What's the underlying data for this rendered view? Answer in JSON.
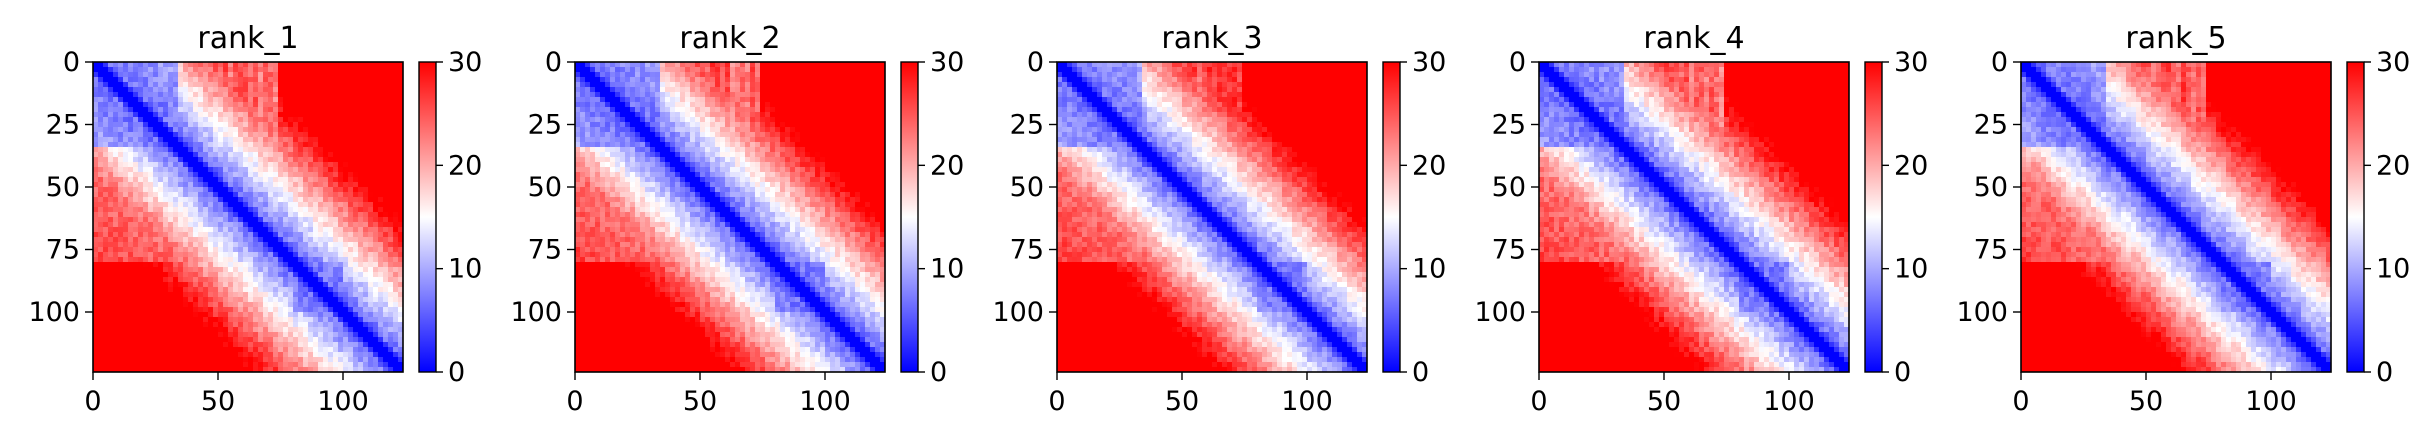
{
  "chart_data": [
    {
      "type": "heatmap",
      "title": "rank_1",
      "xlabel": "",
      "ylabel": "",
      "x_ticks": [
        0,
        50,
        100
      ],
      "y_ticks": [
        0,
        25,
        50,
        75,
        100
      ],
      "x_range": [
        0,
        124
      ],
      "y_range": [
        0,
        124
      ],
      "y_inverted": true,
      "colormap": "bwr",
      "color_range": [
        0,
        30
      ],
      "colorbar_ticks": [
        0,
        10,
        20,
        30
      ],
      "domains": [
        [
          0,
          34
        ],
        [
          80,
          100
        ]
      ]
    },
    {
      "type": "heatmap",
      "title": "rank_2",
      "xlabel": "",
      "ylabel": "",
      "x_ticks": [
        0,
        50,
        100
      ],
      "y_ticks": [
        0,
        25,
        50,
        75,
        100
      ],
      "x_range": [
        0,
        124
      ],
      "y_range": [
        0,
        124
      ],
      "y_inverted": true,
      "colormap": "bwr",
      "color_range": [
        0,
        30
      ],
      "colorbar_ticks": [
        0,
        10,
        20,
        30
      ],
      "domains": [
        [
          0,
          34
        ],
        [
          80,
          100
        ]
      ]
    },
    {
      "type": "heatmap",
      "title": "rank_3",
      "xlabel": "",
      "ylabel": "",
      "x_ticks": [
        0,
        50,
        100
      ],
      "y_ticks": [
        0,
        25,
        50,
        75,
        100
      ],
      "x_range": [
        0,
        124
      ],
      "y_range": [
        0,
        124
      ],
      "y_inverted": true,
      "colormap": "bwr",
      "color_range": [
        0,
        30
      ],
      "colorbar_ticks": [
        0,
        10,
        20,
        30
      ],
      "domains": [
        [
          0,
          34
        ],
        [
          80,
          100
        ]
      ]
    },
    {
      "type": "heatmap",
      "title": "rank_4",
      "xlabel": "",
      "ylabel": "",
      "x_ticks": [
        0,
        50,
        100
      ],
      "y_ticks": [
        0,
        25,
        50,
        75,
        100
      ],
      "x_range": [
        0,
        124
      ],
      "y_range": [
        0,
        124
      ],
      "y_inverted": true,
      "colormap": "bwr",
      "color_range": [
        0,
        30
      ],
      "colorbar_ticks": [
        0,
        10,
        20,
        30
      ],
      "domains": [
        [
          0,
          34
        ],
        [
          80,
          100
        ]
      ]
    },
    {
      "type": "heatmap",
      "title": "rank_5",
      "xlabel": "",
      "ylabel": "",
      "x_ticks": [
        0,
        50,
        100
      ],
      "y_ticks": [
        0,
        25,
        50,
        75,
        100
      ],
      "x_range": [
        0,
        124
      ],
      "y_range": [
        0,
        124
      ],
      "y_inverted": true,
      "colormap": "bwr",
      "color_range": [
        0,
        30
      ],
      "colorbar_ticks": [
        0,
        10,
        20,
        30
      ],
      "domains": [
        [
          0,
          34
        ],
        [
          80,
          100
        ]
      ]
    }
  ]
}
